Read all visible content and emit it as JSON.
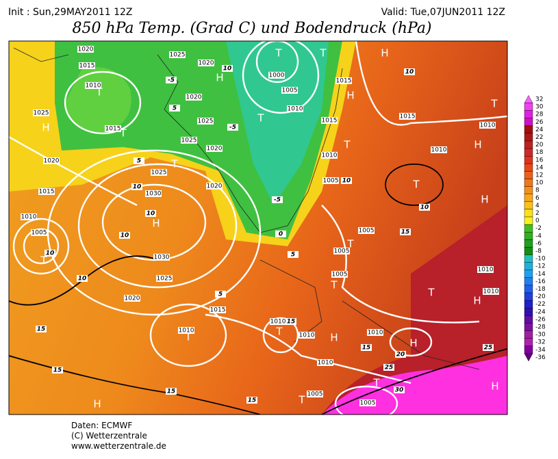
{
  "header": {
    "init": "Init : Sun,29MAY2011 12Z",
    "valid": "Valid: Tue,07JUN2011 12Z",
    "title": "850 hPa Temp. (Grad C) und Bodendruck (hPa)"
  },
  "colorbar": {
    "values": [
      32,
      30,
      28,
      26,
      24,
      22,
      20,
      18,
      16,
      14,
      12,
      10,
      8,
      6,
      4,
      2,
      0,
      -2,
      -4,
      -6,
      -8,
      -10,
      -12,
      -14,
      -16,
      -18,
      -20,
      -22,
      -24,
      -26,
      -28,
      -30,
      -32,
      -34,
      -36
    ]
  },
  "map": {
    "pressure_systems": [
      "H",
      "T",
      "T",
      "H",
      "H",
      "T",
      "T",
      "T",
      "H",
      "H",
      "T",
      "T",
      "H",
      "H",
      "T",
      "T",
      "T",
      "T",
      "H",
      "T",
      "H",
      "H",
      "T",
      "T",
      "T",
      "T",
      "H",
      "H",
      "T"
    ],
    "isobar_labels": [
      "1020",
      "1015",
      "1010",
      "1025",
      "1015",
      "1020",
      "1015",
      "1010",
      "1005",
      "1025",
      "1030",
      "1030",
      "1025",
      "1020",
      "1015",
      "1010",
      "1025",
      "1020",
      "1020",
      "1025",
      "1025",
      "1020",
      "1020",
      "1000",
      "1005",
      "1010",
      "1015",
      "1015",
      "1010",
      "1005",
      "1015",
      "1010",
      "1010",
      "1005",
      "1005",
      "1005",
      "1010",
      "1010",
      "1010",
      "1010",
      "1010",
      "1010",
      "1005",
      "1005"
    ],
    "temperature_labels": [
      "10",
      "-5",
      "-5",
      "5",
      "10",
      "10",
      "10",
      "10",
      "10",
      "5",
      "15",
      "15",
      "15",
      "20",
      "25",
      "25",
      "30",
      "15",
      "15",
      "15",
      "10",
      "15",
      "10",
      "-5",
      "0",
      "5",
      "10",
      "5"
    ]
  },
  "footer": {
    "lines": [
      "Daten: ECMWF",
      "(C) Wetterzentrale",
      "www.wetterzentrale.de"
    ]
  }
}
